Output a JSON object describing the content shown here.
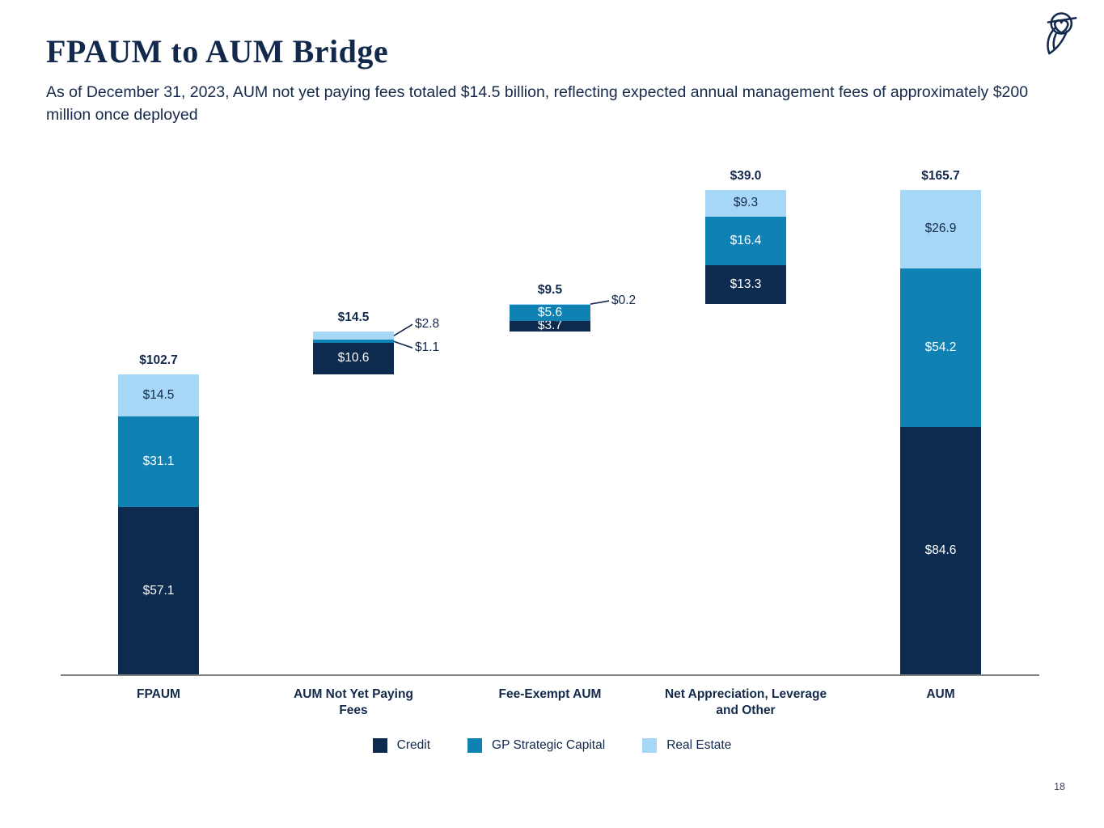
{
  "header": {
    "title": "FPAUM to AUM Bridge",
    "subtitle": "As of December 31, 2023, AUM not yet paying fees totaled $14.5 billion, reflecting expected annual management fees of approximately $200 million once deployed"
  },
  "logo": {
    "name": "blue-owl-logo",
    "color": "#14294e"
  },
  "footer": {
    "page_number": "18"
  },
  "chart_data": {
    "type": "bar",
    "variant": "stacked-waterfall-bridge",
    "unit": "$ billions",
    "grid": false,
    "axis_color": "#7f7f7f",
    "colors": {
      "credit": "#0d2a4f",
      "gp_strategic_capital": "#0f81b3",
      "real_estate": "#a6d7f7",
      "label_on_dark": "#ffffff",
      "label_on_light": "#13294b",
      "total_label": "#13294b",
      "callout_line": "#13294b"
    },
    "series_colors": {
      "Credit": "#0d2a4f",
      "GP Strategic Capital": "#0f81b3",
      "Real Estate": "#a6d7f7"
    },
    "categories": [
      "FPAUM",
      "AUM Not Yet Paying Fees",
      "Fee-Exempt AUM",
      "Net Appreciation, Leverage and Other",
      "AUM"
    ],
    "series": [
      {
        "name": "Credit",
        "values": [
          57.1,
          10.6,
          3.7,
          13.3,
          84.6
        ]
      },
      {
        "name": "GP Strategic Capital",
        "values": [
          31.1,
          1.1,
          5.6,
          16.4,
          54.2
        ]
      },
      {
        "name": "Real Estate",
        "values": [
          14.5,
          2.8,
          0.2,
          9.3,
          26.9
        ]
      }
    ],
    "bars": [
      {
        "category_lines": "FPAUM",
        "base": 0,
        "total": 102.7,
        "total_label": "$102.7",
        "segments": [
          {
            "series": "Credit",
            "value": 57.1,
            "label": "$57.1",
            "label_pos": "inside"
          },
          {
            "series": "GP Strategic Capital",
            "value": 31.1,
            "label": "$31.1",
            "label_pos": "inside"
          },
          {
            "series": "Real Estate",
            "value": 14.5,
            "label": "$14.5",
            "label_pos": "inside"
          }
        ]
      },
      {
        "category_lines": "AUM Not Yet Paying\nFees",
        "base": 102.7,
        "total": 14.5,
        "total_label": "$14.5",
        "segments": [
          {
            "series": "Credit",
            "value": 10.6,
            "label": "$10.6",
            "label_pos": "inside"
          },
          {
            "series": "GP Strategic Capital",
            "value": 1.1,
            "label": "$1.1",
            "label_pos": "callout-down"
          },
          {
            "series": "Real Estate",
            "value": 2.8,
            "label": "$2.8",
            "label_pos": "callout-up"
          }
        ]
      },
      {
        "category_lines": "Fee-Exempt AUM",
        "base": 117.2,
        "total": 9.5,
        "total_label": "$9.5",
        "segments": [
          {
            "series": "Credit",
            "value": 3.7,
            "label": "$3.7",
            "label_pos": "inside"
          },
          {
            "series": "GP Strategic Capital",
            "value": 5.6,
            "label": "$5.6",
            "label_pos": "inside"
          },
          {
            "series": "Real Estate",
            "value": 0.2,
            "label": "$0.2",
            "label_pos": "callout-flat"
          }
        ]
      },
      {
        "category_lines": "Net Appreciation, Leverage\nand Other",
        "base": 126.7,
        "total": 39.0,
        "total_label": "$39.0",
        "segments": [
          {
            "series": "Credit",
            "value": 13.3,
            "label": "$13.3",
            "label_pos": "inside"
          },
          {
            "series": "GP Strategic Capital",
            "value": 16.4,
            "label": "$16.4",
            "label_pos": "inside"
          },
          {
            "series": "Real Estate",
            "value": 9.3,
            "label": "$9.3",
            "label_pos": "inside"
          }
        ]
      },
      {
        "category_lines": "AUM",
        "base": 0,
        "total": 165.7,
        "total_label": "$165.7",
        "segments": [
          {
            "series": "Credit",
            "value": 84.6,
            "label": "$84.6",
            "label_pos": "inside"
          },
          {
            "series": "GP Strategic Capital",
            "value": 54.2,
            "label": "$54.2",
            "label_pos": "inside"
          },
          {
            "series": "Real Estate",
            "value": 26.9,
            "label": "$26.9",
            "label_pos": "inside"
          }
        ]
      }
    ],
    "legend": {
      "position": "bottom",
      "items": [
        {
          "label": "Credit",
          "color": "#0d2a4f"
        },
        {
          "label": "GP Strategic Capital",
          "color": "#0f81b3"
        },
        {
          "label": "Real Estate",
          "color": "#a6d7f7"
        }
      ]
    },
    "ylim": [
      0,
      170
    ]
  }
}
